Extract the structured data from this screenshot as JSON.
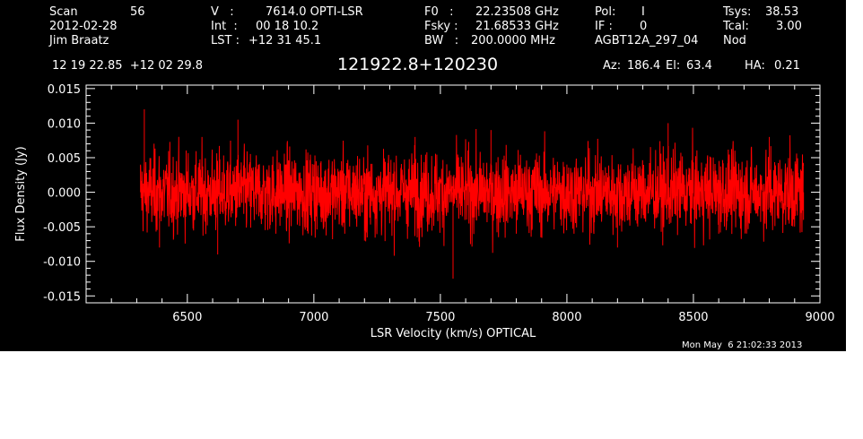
{
  "header": {
    "scan_label": "Scan",
    "scan_value": "56",
    "date": "2012-02-28",
    "observer": "Jim Braatz",
    "v_label": "V   :",
    "v_value": "7614.0 OPTI-LSR",
    "int_label": "Int  :",
    "int_value": "00 18 10.2",
    "lst_label": "LST :",
    "lst_value": "+12 31 45.1",
    "f0_label": "F0   :",
    "f0_value": "22.23508 GHz",
    "fsky_label": "Fsky :",
    "fsky_value": "21.68533 GHz",
    "bw_label": "BW   :",
    "bw_value": "200.0000 MHz",
    "pol_label": "Pol:",
    "pol_value": "I",
    "if_label": "IF :",
    "if_value": "0",
    "project": "AGBT12A_297_04",
    "tsys_label": "Tsys:",
    "tsys_value": "38.53",
    "tcal_label": "Tcal:",
    "tcal_value": "3.00",
    "mode": "Nod",
    "coords": "12 19 22.85  +12 02 29.8",
    "source": "121922.8+120230",
    "az_label": "Az:",
    "az_value": "186.4",
    "el_label": "El:",
    "el_value": "63.4",
    "ha_label": "HA:",
    "ha_value": "0.21",
    "timestamp": "Mon May  6 21:02:33 2013"
  },
  "chart_data": {
    "type": "line",
    "title": "121922.8+120230",
    "xlabel": "LSR Velocity (km/s) OPTICAL",
    "ylabel": "Flux Density (Jy)",
    "xlim": [
      6100,
      9000
    ],
    "ylim": [
      -0.016,
      0.0155
    ],
    "xticks": [
      6500,
      7000,
      7500,
      8000,
      8500,
      9000
    ],
    "xtick_labels": [
      "6500",
      "7000",
      "7500",
      "8000",
      "8500",
      "9000"
    ],
    "yticks": [
      -0.015,
      -0.01,
      -0.005,
      0.0,
      0.005,
      0.01,
      0.015
    ],
    "ytick_labels": [
      "-0.015",
      "-0.010",
      "-0.005",
      "0.000",
      "0.005",
      "0.010",
      "0.015"
    ],
    "series": [
      {
        "color": "#ff0000",
        "x_range": [
          6315,
          8935
        ],
        "description": "noise-like spectrum centered near 0 Jy",
        "x": [
          6315,
          6330,
          6390,
          6500,
          6620,
          6700,
          6850,
          7000,
          7200,
          7400,
          7550,
          7700,
          7800,
          8000,
          8200,
          8400,
          8600,
          8800,
          8935
        ],
        "y": [
          0.004,
          0.012,
          -0.008,
          0.003,
          -0.009,
          0.0105,
          -0.006,
          0.004,
          -0.007,
          0.008,
          -0.0125,
          0.009,
          -0.006,
          0.004,
          -0.008,
          0.01,
          -0.006,
          0.008,
          -0.004
        ]
      }
    ],
    "grid": false
  },
  "colors": {
    "background": "#000000",
    "axes": "#ffffff",
    "trace": "#ff0000"
  }
}
